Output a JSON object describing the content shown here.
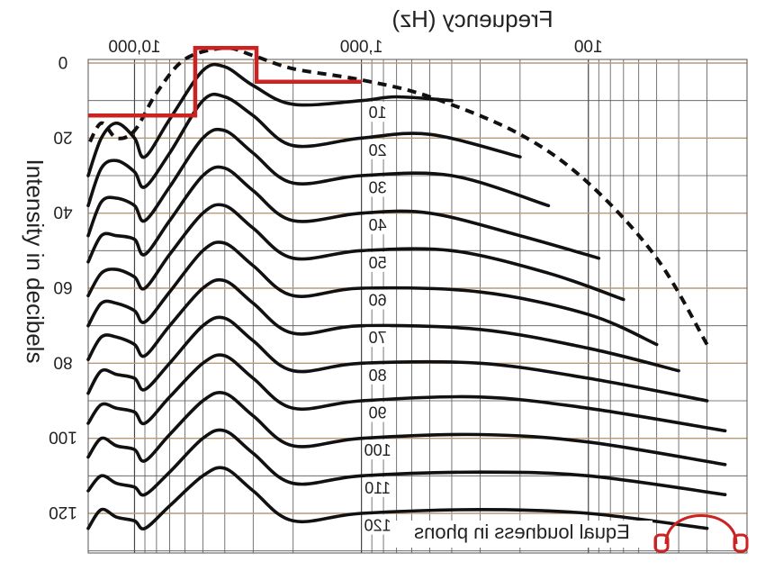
{
  "chart_data": {
    "type": "line",
    "title": "Frequency (Hz)",
    "xlabel": "Frequency (Hz)",
    "ylabel": "Intensity in decibels",
    "annotation": "Equal loudness in phons",
    "x_scale": "log",
    "xlim": [
      20,
      16000
    ],
    "ylim": [
      -4,
      130
    ],
    "y_inverted": true,
    "mirrored_horizontally": true,
    "grid": true,
    "x_tick_labels": [
      {
        "value": 100,
        "label": "100"
      },
      {
        "value": 1000,
        "label": "1,000"
      },
      {
        "value": 10000,
        "label": "10,000"
      }
    ],
    "y_tick_labels": [
      {
        "value": 0,
        "label": "0"
      },
      {
        "value": 20,
        "label": "20"
      },
      {
        "value": 40,
        "label": "40"
      },
      {
        "value": 60,
        "label": "60"
      },
      {
        "value": 80,
        "label": "80"
      },
      {
        "value": 100,
        "label": "100"
      },
      {
        "value": 120,
        "label": "120"
      }
    ],
    "curve_labels": [
      "10",
      "20",
      "30",
      "40",
      "50",
      "60",
      "70",
      "80",
      "90",
      "100",
      "110",
      "120"
    ],
    "threshold_series": {
      "style": "dashed",
      "x": [
        30,
        50,
        100,
        200,
        500,
        1000,
        2000,
        3000,
        4000,
        6000,
        8000,
        10000,
        12000,
        14000,
        16000
      ],
      "values": [
        75,
        52,
        32,
        19,
        9,
        4.5,
        1.5,
        -2,
        -4,
        -1,
        8,
        18,
        20,
        16,
        22
      ]
    },
    "series": [
      {
        "name": "10",
        "x": [
          400,
          700,
          1000,
          2000,
          3000,
          4000,
          5000,
          7000,
          9000,
          10000,
          12000,
          14000,
          16000
        ],
        "values": [
          10,
          9,
          10,
          11,
          6,
          1,
          2,
          15,
          25,
          20,
          16,
          20,
          30
        ]
      },
      {
        "name": "20",
        "x": [
          200,
          500,
          1000,
          2000,
          3000,
          4000,
          5000,
          7000,
          9000,
          10000,
          12000,
          14000,
          16000
        ],
        "values": [
          25,
          19,
          20,
          22,
          14,
          9,
          10,
          24,
          33,
          29,
          26,
          28,
          38
        ]
      },
      {
        "name": "30",
        "x": [
          150,
          400,
          1000,
          2000,
          3000,
          4000,
          5000,
          7000,
          9000,
          10000,
          12000,
          14000,
          16000
        ],
        "values": [
          38,
          30,
          30,
          32,
          24,
          18,
          20,
          33,
          42,
          38,
          36,
          37,
          46
        ]
      },
      {
        "name": "40",
        "x": [
          90,
          200,
          500,
          1000,
          2000,
          3000,
          4000,
          5000,
          7000,
          9000,
          10000,
          12000,
          14000,
          16000
        ],
        "values": [
          52,
          46,
          40,
          40,
          42,
          34,
          28,
          30,
          42,
          51,
          47,
          46,
          46,
          53
        ]
      },
      {
        "name": "50",
        "x": [
          70,
          150,
          400,
          1000,
          2000,
          3000,
          4000,
          5000,
          7000,
          9000,
          10000,
          12000,
          14000,
          16000
        ],
        "values": [
          63,
          56,
          50,
          50,
          52,
          44,
          38,
          40,
          51,
          60,
          57,
          55,
          56,
          62
        ]
      },
      {
        "name": "60",
        "x": [
          50,
          100,
          300,
          1000,
          2000,
          3000,
          4000,
          5000,
          7000,
          9000,
          10000,
          12000,
          14000,
          16000
        ],
        "values": [
          75,
          67,
          61,
          60,
          62,
          54,
          48,
          50,
          61,
          69,
          66,
          64,
          64,
          70
        ]
      },
      {
        "name": "70",
        "x": [
          40,
          100,
          300,
          1000,
          2000,
          3000,
          4000,
          5000,
          7000,
          9000,
          10000,
          12000,
          14000,
          16000
        ],
        "values": [
          82,
          76,
          71,
          70,
          72,
          64,
          58,
          60,
          70,
          78,
          75,
          73,
          73,
          79
        ]
      },
      {
        "name": "80",
        "x": [
          30,
          100,
          300,
          1000,
          2000,
          3000,
          4000,
          5000,
          7000,
          9000,
          10000,
          12000,
          14000,
          16000
        ],
        "values": [
          90,
          84,
          80,
          80,
          82,
          74,
          68,
          70,
          80,
          87,
          84,
          83,
          82,
          88
        ]
      },
      {
        "name": "90",
        "x": [
          25,
          100,
          300,
          1000,
          2000,
          3000,
          4000,
          5000,
          7000,
          9000,
          10000,
          12000,
          14000,
          16000
        ],
        "values": [
          98,
          92,
          89,
          90,
          92,
          84,
          78,
          80,
          89,
          96,
          93,
          92,
          91,
          96
        ]
      },
      {
        "name": "100",
        "x": [
          25,
          100,
          300,
          1000,
          2000,
          3000,
          4000,
          5000,
          7000,
          9000,
          10000,
          12000,
          14000,
          16000
        ],
        "values": [
          107,
          101,
          99,
          100,
          102,
          94,
          88,
          90,
          99,
          106,
          103,
          102,
          100,
          105
        ]
      },
      {
        "name": "110",
        "x": [
          25,
          100,
          300,
          1000,
          2000,
          3000,
          4000,
          5000,
          7000,
          9000,
          10000,
          12000,
          14000,
          16000
        ],
        "values": [
          115,
          110,
          109,
          110,
          112,
          104,
          98,
          100,
          109,
          115,
          113,
          112,
          110,
          114
        ]
      },
      {
        "name": "120",
        "x": [
          30,
          100,
          300,
          1000,
          2000,
          3000,
          4000,
          5000,
          7000,
          9000,
          10000,
          12000,
          14000,
          16000
        ],
        "values": [
          124,
          120,
          119,
          120,
          122,
          114,
          108,
          110,
          118,
          124,
          122,
          121,
          119,
          124
        ]
      }
    ],
    "highlight_step": {
      "color": "#cc2222",
      "x": [
        1000,
        2900,
        2900,
        5400,
        5400,
        16000
      ],
      "values": [
        5,
        5,
        -4,
        -4,
        14,
        14
      ]
    }
  },
  "colors": {
    "curve": "#111111",
    "grid_minor": "#555555",
    "grid_major": "#b89a78",
    "highlight": "#cc2222"
  },
  "logo": {
    "icon": "headphones-icon",
    "color": "#cc2222"
  }
}
